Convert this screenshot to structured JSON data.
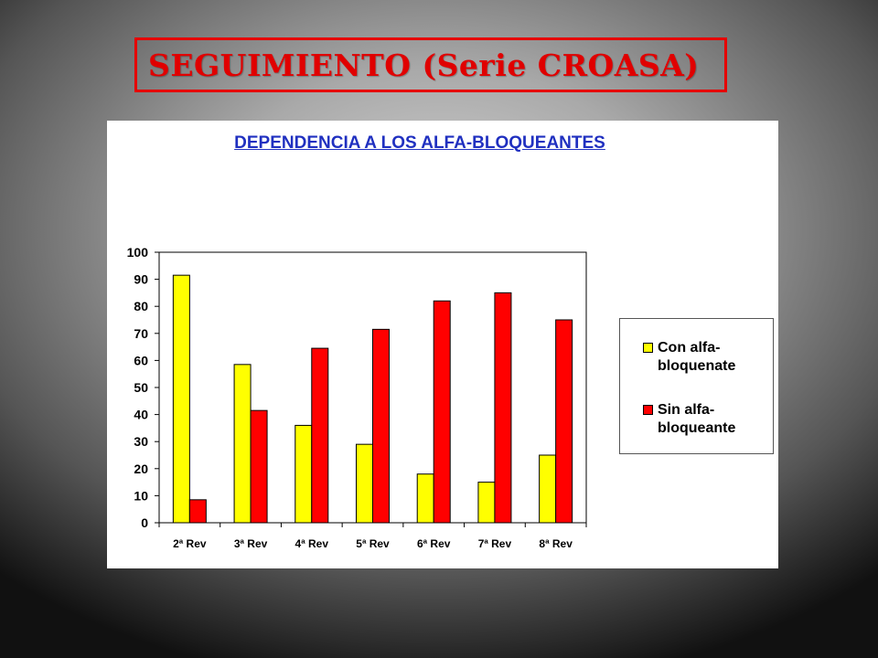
{
  "slide": {
    "title": "SEGUIMIENTO (Serie CROASA)"
  },
  "chart_data": {
    "type": "bar",
    "title": "DEPENDENCIA A LOS ALFA-BLOQUEANTES",
    "xlabel": "",
    "ylabel": "",
    "categories": [
      "2ª Rev",
      "3ª Rev",
      "4ª Rev",
      "5ª Rev",
      "6ª Rev",
      "7ª Rev",
      "8ª Rev"
    ],
    "series": [
      {
        "name": "Con alfa-bloquenate",
        "color": "#ffff00",
        "values": [
          91.5,
          58.5,
          36,
          29,
          18,
          15,
          25
        ]
      },
      {
        "name": "Sin alfa-bloqueante",
        "color": "#ff0000",
        "values": [
          8.5,
          41.5,
          64.5,
          71.5,
          82,
          85,
          75
        ]
      }
    ],
    "ylim": [
      0,
      100
    ],
    "yticks": [
      0,
      10,
      20,
      30,
      40,
      50,
      60,
      70,
      80,
      90,
      100
    ],
    "grid": false,
    "legend_position": "right"
  }
}
